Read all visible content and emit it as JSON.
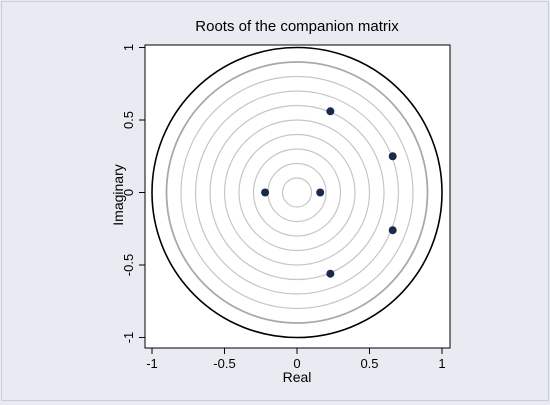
{
  "chart_data": {
    "type": "scatter",
    "title": "Roots of the companion matrix",
    "xlabel": "Real",
    "ylabel": "Imaginary",
    "xlim": [
      -1.05,
      1.05
    ],
    "ylim": [
      -1.05,
      1.05
    ],
    "xticks": [
      -1,
      -0.5,
      0,
      0.5,
      1
    ],
    "yticks": [
      -1,
      -0.5,
      0,
      0.5,
      1
    ],
    "xtick_labels": [
      "-1",
      "-0.5",
      "0",
      "0.5",
      "1"
    ],
    "ytick_labels": [
      "-1",
      "-0.5",
      "0",
      "0.5",
      "1"
    ],
    "grid": false,
    "unit_circle_radius": 1,
    "reference_circle_radii": [
      0.1,
      0.2,
      0.3,
      0.4,
      0.5,
      0.6,
      0.7,
      0.8,
      0.9
    ],
    "points": [
      {
        "x": 0.23,
        "y": 0.56
      },
      {
        "x": 0.66,
        "y": 0.25
      },
      {
        "x": -0.22,
        "y": 0.0
      },
      {
        "x": 0.16,
        "y": 0.0
      },
      {
        "x": 0.66,
        "y": -0.26
      },
      {
        "x": 0.23,
        "y": -0.56
      }
    ],
    "colors": {
      "background": "#e8ecf2",
      "plot_background": "#ffffff",
      "point": "#1a2a4a",
      "unit_circle": "#000000",
      "reference_circle": "#c6c6c6",
      "outer_reference_circle": "#a9a9a9"
    }
  }
}
